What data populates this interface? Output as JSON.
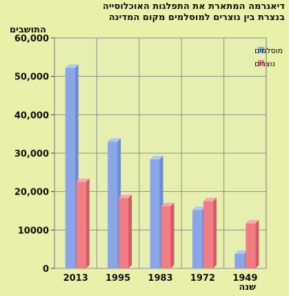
{
  "chart_data": {
    "type": "bar",
    "title": "דיאגרמה המתארת את התפלגות האוכלוסייה",
    "subtitle": "בנצרת בין נוצרים למוסלמים מקום המדינה",
    "xlabel": "שנה",
    "ylabel": "התושבים",
    "categories": [
      "2013",
      "1995",
      "1983",
      "1972",
      "1949"
    ],
    "series": [
      {
        "name": "מוסלמים",
        "color": "#8aa6e8",
        "values": [
          52200,
          33000,
          28400,
          15200,
          3800
        ]
      },
      {
        "name": "נוצרים",
        "color": "#f27c84",
        "values": [
          22500,
          18300,
          16200,
          17500,
          11700
        ]
      }
    ],
    "ylim": [
      0,
      60000
    ],
    "yticks": [
      0,
      10000,
      20000,
      30000,
      40000,
      50000,
      60000
    ],
    "ytick_labels": [
      "0",
      "10000",
      "20,000",
      "30,000",
      "40,000",
      "50,000",
      "60,000"
    ],
    "grid": true,
    "legend_position": "top-right"
  }
}
